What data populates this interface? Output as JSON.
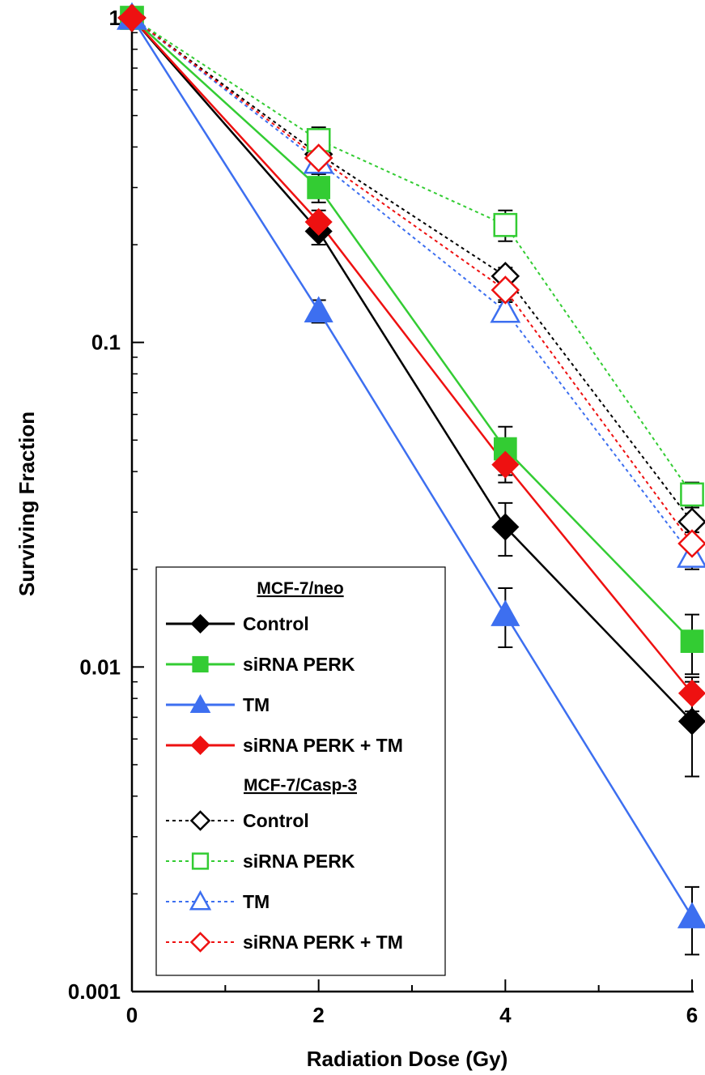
{
  "chart_data": {
    "type": "line",
    "xlabel": "Radiation Dose (Gy)",
    "ylabel": "Surviving Fraction",
    "x_ticks": [
      "0",
      "2",
      "4",
      "6"
    ],
    "y_ticks": [
      "0.001",
      "0.01",
      "0.1",
      "1"
    ],
    "xlim": [
      0,
      6
    ],
    "ylim": [
      0.001,
      1
    ],
    "y_scale": "log",
    "grid": false,
    "legend_position": "bottom-left",
    "legend_groups": [
      {
        "heading": "MCF-7/neo",
        "entries": [
          "Control",
          "siRNA PERK",
          "TM",
          "siRNA PERK + TM"
        ]
      },
      {
        "heading": "MCF-7/Casp-3",
        "entries": [
          "Control",
          "siRNA PERK",
          "TM",
          "siRNA PERK + TM"
        ]
      }
    ],
    "series": [
      {
        "group": "MCF-7/neo",
        "name": "Control",
        "color": "#000000",
        "dash": "solid",
        "marker": "diamond",
        "filled": true,
        "x": [
          0,
          2,
          4,
          6
        ],
        "y": [
          1.0,
          0.22,
          0.027,
          0.0068
        ],
        "err": [
          null,
          0.02,
          0.005,
          0.0022
        ]
      },
      {
        "group": "MCF-7/neo",
        "name": "siRNA PERK",
        "color": "#33cc33",
        "dash": "solid",
        "marker": "square",
        "filled": true,
        "x": [
          0,
          2,
          4,
          6
        ],
        "y": [
          1.0,
          0.3,
          0.047,
          0.012
        ],
        "err": [
          null,
          0.03,
          0.008,
          0.0025
        ]
      },
      {
        "group": "MCF-7/neo",
        "name": "TM",
        "color": "#3d6ff0",
        "dash": "solid",
        "marker": "triangle",
        "filled": true,
        "x": [
          0,
          2,
          4,
          6
        ],
        "y": [
          1.0,
          0.125,
          0.0145,
          0.0017
        ],
        "err": [
          null,
          0.01,
          0.003,
          0.0004
        ]
      },
      {
        "group": "MCF-7/neo",
        "name": "siRNA PERK + TM",
        "color": "#ee1111",
        "dash": "solid",
        "marker": "diamond",
        "filled": true,
        "x": [
          0,
          2,
          4,
          6
        ],
        "y": [
          1.0,
          0.235,
          0.042,
          0.0083
        ],
        "err": [
          null,
          0.02,
          0.005,
          0.001
        ]
      },
      {
        "group": "MCF-7/Casp-3",
        "name": "Control",
        "color": "#000000",
        "dash": "dotted",
        "marker": "diamond",
        "filled": false,
        "x": [
          0,
          2,
          4,
          6
        ],
        "y": [
          1.0,
          0.38,
          0.16,
          0.028
        ],
        "err": [
          null,
          0.03,
          0.01,
          0.003
        ]
      },
      {
        "group": "MCF-7/Casp-3",
        "name": "siRNA PERK",
        "color": "#33cc33",
        "dash": "dotted",
        "marker": "square",
        "filled": false,
        "x": [
          0,
          2,
          4,
          6
        ],
        "y": [
          1.0,
          0.42,
          0.23,
          0.034
        ],
        "err": [
          null,
          0.04,
          0.025,
          0.003
        ]
      },
      {
        "group": "MCF-7/Casp-3",
        "name": "TM",
        "color": "#3d6ff0",
        "dash": "dotted",
        "marker": "triangle",
        "filled": false,
        "x": [
          0,
          2,
          4,
          6
        ],
        "y": [
          1.0,
          0.36,
          0.125,
          0.022
        ],
        "err": [
          null,
          0.03,
          0.008,
          0.002
        ]
      },
      {
        "group": "MCF-7/Casp-3",
        "name": "siRNA PERK + TM",
        "color": "#ee1111",
        "dash": "dotted",
        "marker": "diamond",
        "filled": false,
        "x": [
          0,
          2,
          4,
          6
        ],
        "y": [
          1.0,
          0.37,
          0.145,
          0.024
        ],
        "err": [
          null,
          0.03,
          0.01,
          0.002
        ]
      }
    ]
  }
}
